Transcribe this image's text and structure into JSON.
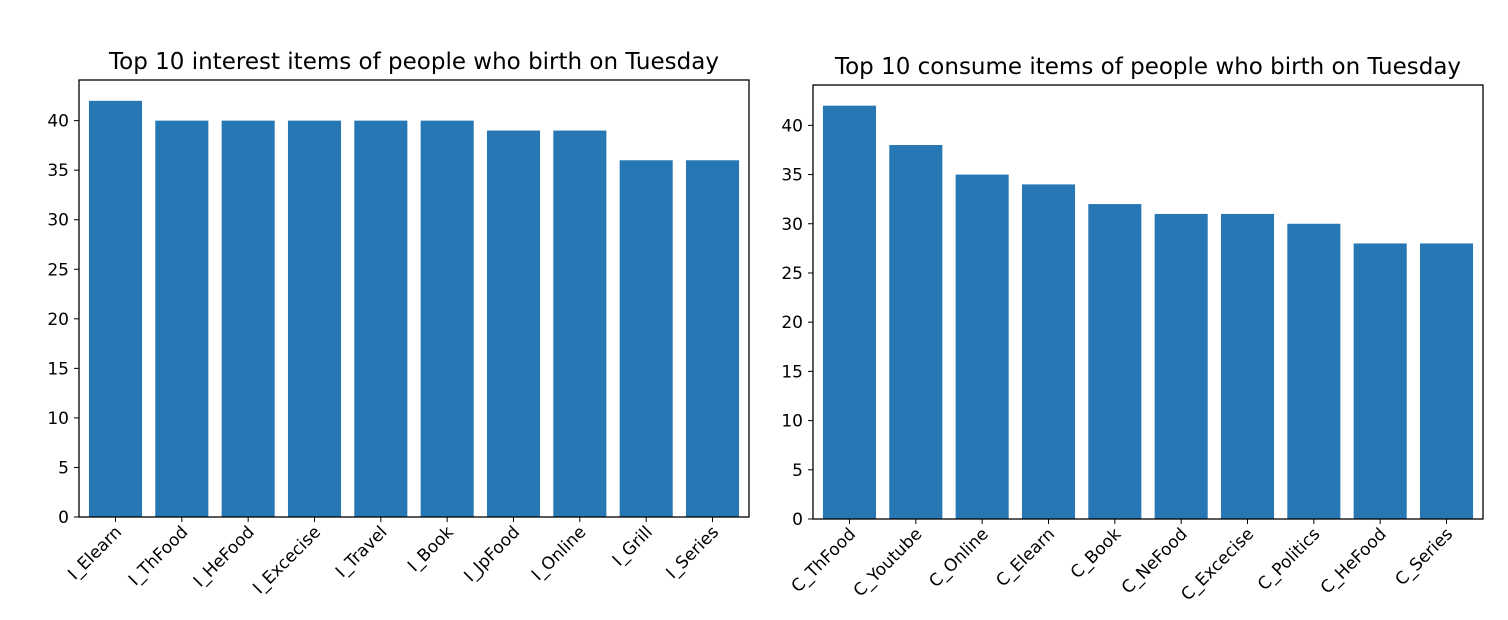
{
  "chart_data": [
    {
      "type": "bar",
      "title": "Top 10 interest items of people who birth on Tuesday",
      "xlabel": "",
      "ylabel": "",
      "categories": [
        "I_Elearn",
        "I_ThFood",
        "I_HeFood",
        "I_Excecise",
        "I_Travel",
        "I_Book",
        "I_JpFood",
        "I_Online",
        "I_Grill",
        "I_Series"
      ],
      "values": [
        42,
        40,
        40,
        40,
        40,
        40,
        39,
        39,
        36,
        36
      ],
      "ylim": [
        0,
        44.1
      ],
      "yticks": [
        0,
        5,
        10,
        15,
        20,
        25,
        30,
        35,
        40
      ],
      "color": "#2677b3",
      "grid": false
    },
    {
      "type": "bar",
      "title": "Top 10 consume items of people who birth on Tuesday",
      "xlabel": "",
      "ylabel": "",
      "categories": [
        "C_ThFood",
        "C_Youtube",
        "C_Online",
        "C_Elearn",
        "C_Book",
        "C_NeFood",
        "C_Excecise",
        "C_Politics",
        "C_HeFood",
        "C_Series"
      ],
      "values": [
        42,
        38,
        35,
        34,
        32,
        31,
        31,
        30,
        28,
        28
      ],
      "ylim": [
        0,
        44.1
      ],
      "yticks": [
        0,
        5,
        10,
        15,
        20,
        25,
        30,
        35,
        40
      ],
      "color": "#2677b3",
      "grid": false
    }
  ]
}
